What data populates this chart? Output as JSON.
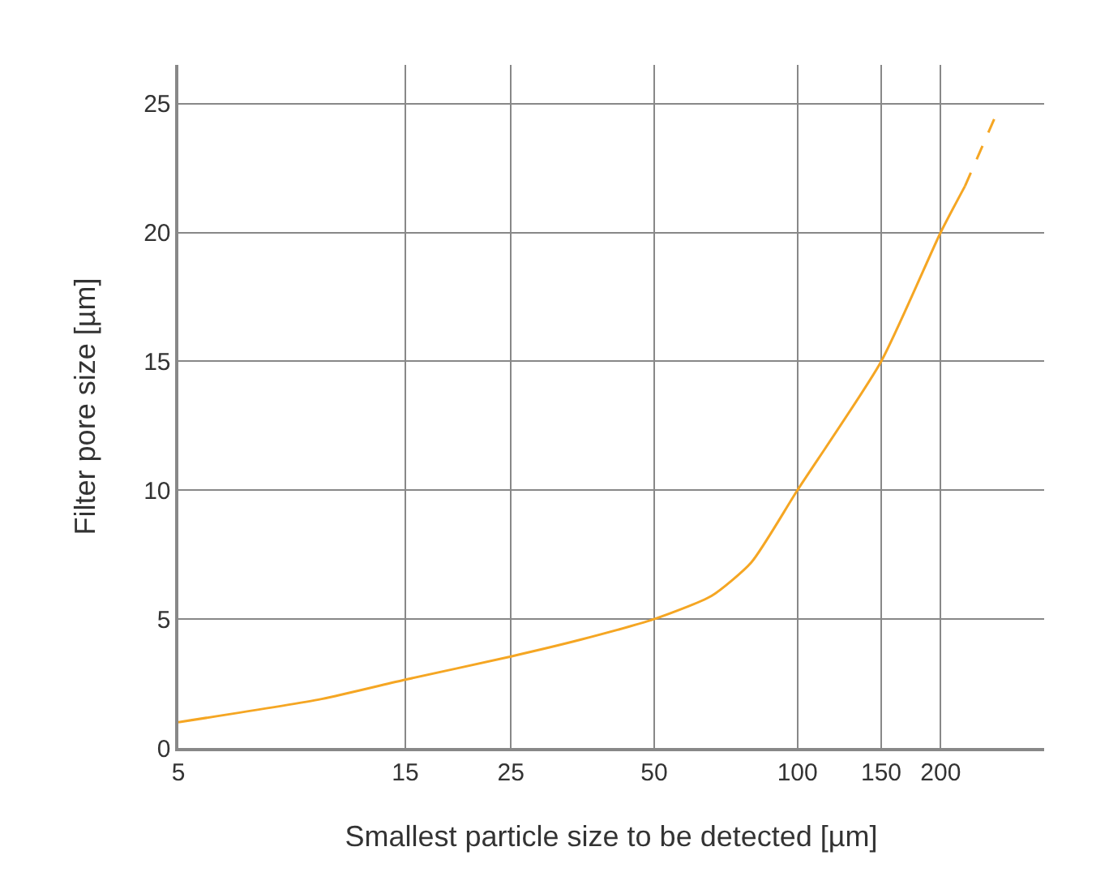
{
  "chart_data": {
    "type": "line",
    "xlabel": "Smallest particle size to be detected [µm]",
    "ylabel": "Filter pore size [µm]",
    "log": "x",
    "xlim": [
      5,
      330
    ],
    "ylim": [
      0,
      26.5
    ],
    "xticks": [
      5,
      15,
      25,
      50,
      100,
      150,
      200
    ],
    "yticks": [
      0,
      5,
      10,
      15,
      20,
      25
    ],
    "grid": true,
    "marker": "none",
    "series": [
      {
        "color": "#f5a623",
        "line_style": "solid",
        "x": [
          5,
          10,
          15,
          25,
          35,
          50,
          66,
          80,
          100,
          150,
          200,
          225
        ],
        "values": [
          1.0,
          1.9,
          2.65,
          3.55,
          4.2,
          5.0,
          5.9,
          7.2,
          10,
          15,
          20,
          21.8
        ]
      },
      {
        "color": "#f5a623",
        "line_style": "dashed",
        "x": [
          225,
          262
        ],
        "values": [
          21.8,
          24.6
        ]
      }
    ]
  }
}
